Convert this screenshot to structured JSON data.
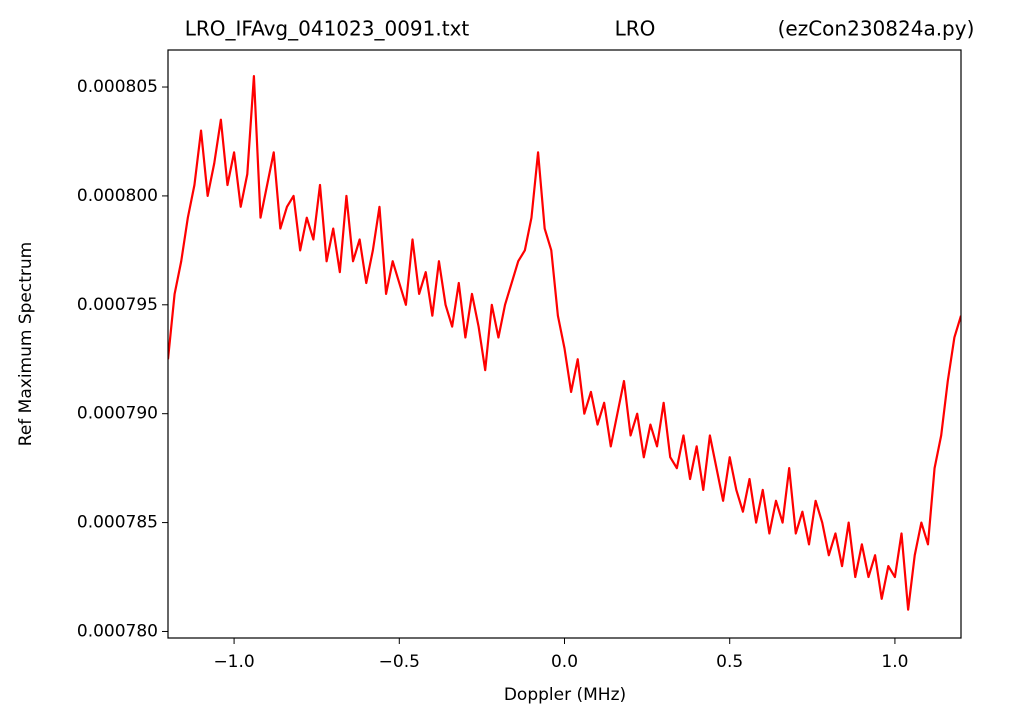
{
  "chart_data": {
    "type": "line",
    "title": [
      "LRO_IFAvg_041023_0091.txt",
      "LRO",
      "(ezCon230824a.py)"
    ],
    "xlabel": "Doppler (MHz)",
    "ylabel": "Ref Maximum Spectrum",
    "x": [
      -1.2,
      -1.18,
      -1.16,
      -1.14,
      -1.12,
      -1.1,
      -1.08,
      -1.06,
      -1.04,
      -1.02,
      -1.0,
      -0.98,
      -0.96,
      -0.94,
      -0.92,
      -0.9,
      -0.88,
      -0.86,
      -0.84,
      -0.82,
      -0.8,
      -0.78,
      -0.76,
      -0.74,
      -0.72,
      -0.7,
      -0.68,
      -0.66,
      -0.64,
      -0.62,
      -0.6,
      -0.58,
      -0.56,
      -0.54,
      -0.52,
      -0.5,
      -0.48,
      -0.46,
      -0.44,
      -0.42,
      -0.4,
      -0.38,
      -0.36,
      -0.34,
      -0.32,
      -0.3,
      -0.28,
      -0.26,
      -0.24,
      -0.22,
      -0.2,
      -0.18,
      -0.16,
      -0.14,
      -0.12,
      -0.1,
      -0.08,
      -0.06,
      -0.04,
      -0.02,
      0.0,
      0.02,
      0.04,
      0.06,
      0.08,
      0.1,
      0.12,
      0.14,
      0.16,
      0.18,
      0.2,
      0.22,
      0.24,
      0.26,
      0.28,
      0.3,
      0.32,
      0.34,
      0.36,
      0.38,
      0.4,
      0.42,
      0.44,
      0.46,
      0.48,
      0.5,
      0.52,
      0.54,
      0.56,
      0.58,
      0.6,
      0.62,
      0.64,
      0.66,
      0.68,
      0.7,
      0.72,
      0.74,
      0.76,
      0.78,
      0.8,
      0.82,
      0.84,
      0.86,
      0.88,
      0.9,
      0.92,
      0.94,
      0.96,
      0.98,
      1.0,
      1.02,
      1.04,
      1.06,
      1.08,
      1.1,
      1.12,
      1.14,
      1.16,
      1.18,
      1.2
    ],
    "series": [
      {
        "color": "#ff0000",
        "values": [
          0.0007925,
          0.0007955,
          0.000797,
          0.000799,
          0.0008005,
          0.000803,
          0.0008,
          0.0008015,
          0.0008035,
          0.0008005,
          0.000802,
          0.0007995,
          0.000801,
          0.0008055,
          0.000799,
          0.0008005,
          0.000802,
          0.0007985,
          0.0007995,
          0.0008,
          0.0007975,
          0.000799,
          0.000798,
          0.0008005,
          0.000797,
          0.0007985,
          0.0007965,
          0.0008,
          0.000797,
          0.000798,
          0.000796,
          0.0007975,
          0.0007995,
          0.0007955,
          0.000797,
          0.000796,
          0.000795,
          0.000798,
          0.0007955,
          0.0007965,
          0.0007945,
          0.000797,
          0.000795,
          0.000794,
          0.000796,
          0.0007935,
          0.0007955,
          0.000794,
          0.000792,
          0.000795,
          0.0007935,
          0.000795,
          0.000796,
          0.000797,
          0.0007975,
          0.000799,
          0.000802,
          0.0007985,
          0.0007975,
          0.0007945,
          0.000793,
          0.000791,
          0.0007925,
          0.00079,
          0.000791,
          0.0007895,
          0.0007905,
          0.0007885,
          0.00079,
          0.0007915,
          0.000789,
          0.00079,
          0.000788,
          0.0007895,
          0.0007885,
          0.0007905,
          0.000788,
          0.0007875,
          0.000789,
          0.000787,
          0.0007885,
          0.0007865,
          0.000789,
          0.0007875,
          0.000786,
          0.000788,
          0.0007865,
          0.0007855,
          0.000787,
          0.000785,
          0.0007865,
          0.0007845,
          0.000786,
          0.000785,
          0.0007875,
          0.0007845,
          0.0007855,
          0.000784,
          0.000786,
          0.000785,
          0.0007835,
          0.0007845,
          0.000783,
          0.000785,
          0.0007825,
          0.000784,
          0.0007825,
          0.0007835,
          0.0007815,
          0.000783,
          0.0007825,
          0.0007845,
          0.000781,
          0.0007835,
          0.000785,
          0.000784,
          0.0007875,
          0.000789,
          0.0007915,
          0.0007935,
          0.0007945
        ]
      }
    ],
    "xlim": [
      -1.2,
      1.2
    ],
    "xticks": [
      {
        "value": -1.0,
        "label": "−1.0"
      },
      {
        "value": -0.5,
        "label": "−0.5"
      },
      {
        "value": 0.0,
        "label": "0.0"
      },
      0.5,
      {
        "value": 1.0,
        "label": "1.0"
      }
    ],
    "ylim": [
      0.0007797,
      0.0008067
    ],
    "yticks": [
      {
        "value": 0.00078,
        "label": "0.000780"
      },
      0.000785,
      {
        "value": 0.00079,
        "label": "0.000790"
      },
      0.000795,
      {
        "value": 0.0008,
        "label": "0.000800"
      },
      0.000805
    ],
    "grid": false
  }
}
